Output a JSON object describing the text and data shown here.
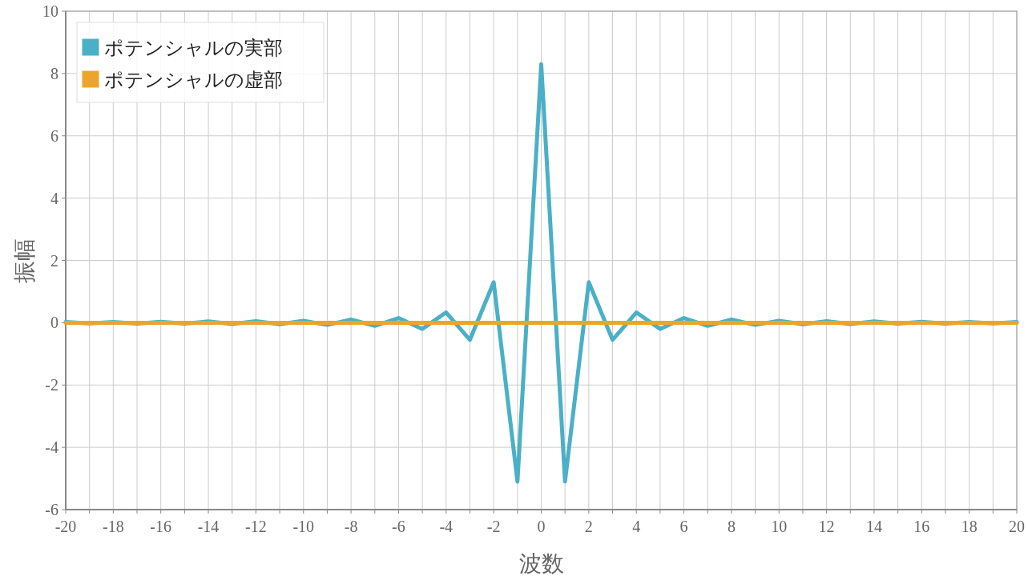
{
  "chart_data": {
    "type": "line",
    "xlabel": "波数",
    "ylabel": "振幅",
    "x": [
      -20,
      -19,
      -18,
      -17,
      -16,
      -15,
      -14,
      -13,
      -12,
      -11,
      -10,
      -9,
      -8,
      -7,
      -6,
      -5,
      -4,
      -3,
      -2,
      -1,
      0,
      1,
      2,
      3,
      4,
      5,
      6,
      7,
      8,
      9,
      10,
      11,
      12,
      13,
      14,
      15,
      16,
      17,
      18,
      19,
      20
    ],
    "series": [
      {
        "name": "ポテンシャルの実部",
        "color": "#4bb0c6",
        "values": [
          0.02,
          -0.02,
          0.02,
          -0.03,
          0.03,
          -0.03,
          0.04,
          -0.04,
          0.05,
          -0.05,
          0.06,
          -0.07,
          0.1,
          -0.1,
          0.15,
          -0.2,
          0.33,
          -0.55,
          1.3,
          -5.1,
          8.3,
          -5.1,
          1.3,
          -0.55,
          0.33,
          -0.2,
          0.15,
          -0.1,
          0.1,
          -0.07,
          0.06,
          -0.05,
          0.05,
          -0.04,
          0.04,
          -0.03,
          0.03,
          -0.03,
          0.02,
          -0.02,
          0.02
        ]
      },
      {
        "name": "ポテンシャルの虚部",
        "color": "#eba52b",
        "values": [
          0,
          0,
          0,
          0,
          0,
          0,
          0,
          0,
          0,
          0,
          0,
          0,
          0,
          0,
          0,
          0,
          0,
          0,
          0,
          0,
          0,
          0,
          0,
          0,
          0,
          0,
          0,
          0,
          0,
          0,
          0,
          0,
          0,
          0,
          0,
          0,
          0,
          0,
          0,
          0,
          0
        ]
      }
    ],
    "xlim": [
      -20,
      20
    ],
    "ylim": [
      -6,
      10
    ],
    "xticks": [
      -20,
      {
        "value": -19,
        "label": null
      },
      -18,
      {
        "value": -17,
        "label": null
      },
      -16,
      {
        "value": -15,
        "label": null
      },
      -14,
      {
        "value": -13,
        "label": null
      },
      -12,
      {
        "value": -11,
        "label": null
      },
      -10,
      {
        "value": -9,
        "label": null
      },
      -8,
      {
        "value": -7,
        "label": null
      },
      -6,
      {
        "value": -5,
        "label": null
      },
      -4,
      {
        "value": -3,
        "label": null
      },
      -2,
      {
        "value": -1,
        "label": null
      },
      0,
      {
        "value": 1,
        "label": null
      },
      2,
      {
        "value": 3,
        "label": null
      },
      4,
      {
        "value": 5,
        "label": null
      },
      6,
      {
        "value": 7,
        "label": null
      },
      8,
      {
        "value": 9,
        "label": null
      },
      10,
      {
        "value": 11,
        "label": null
      },
      12,
      {
        "value": 13,
        "label": null
      },
      14,
      {
        "value": 15,
        "label": null
      },
      16,
      {
        "value": 17,
        "label": null
      },
      18,
      {
        "value": 19,
        "label": null
      },
      20
    ],
    "yticks": [
      -6,
      -4,
      -2,
      0,
      2,
      4,
      6,
      8,
      10
    ],
    "grid": true,
    "legend": "top left",
    "marker": "none",
    "line_style": "solid"
  }
}
